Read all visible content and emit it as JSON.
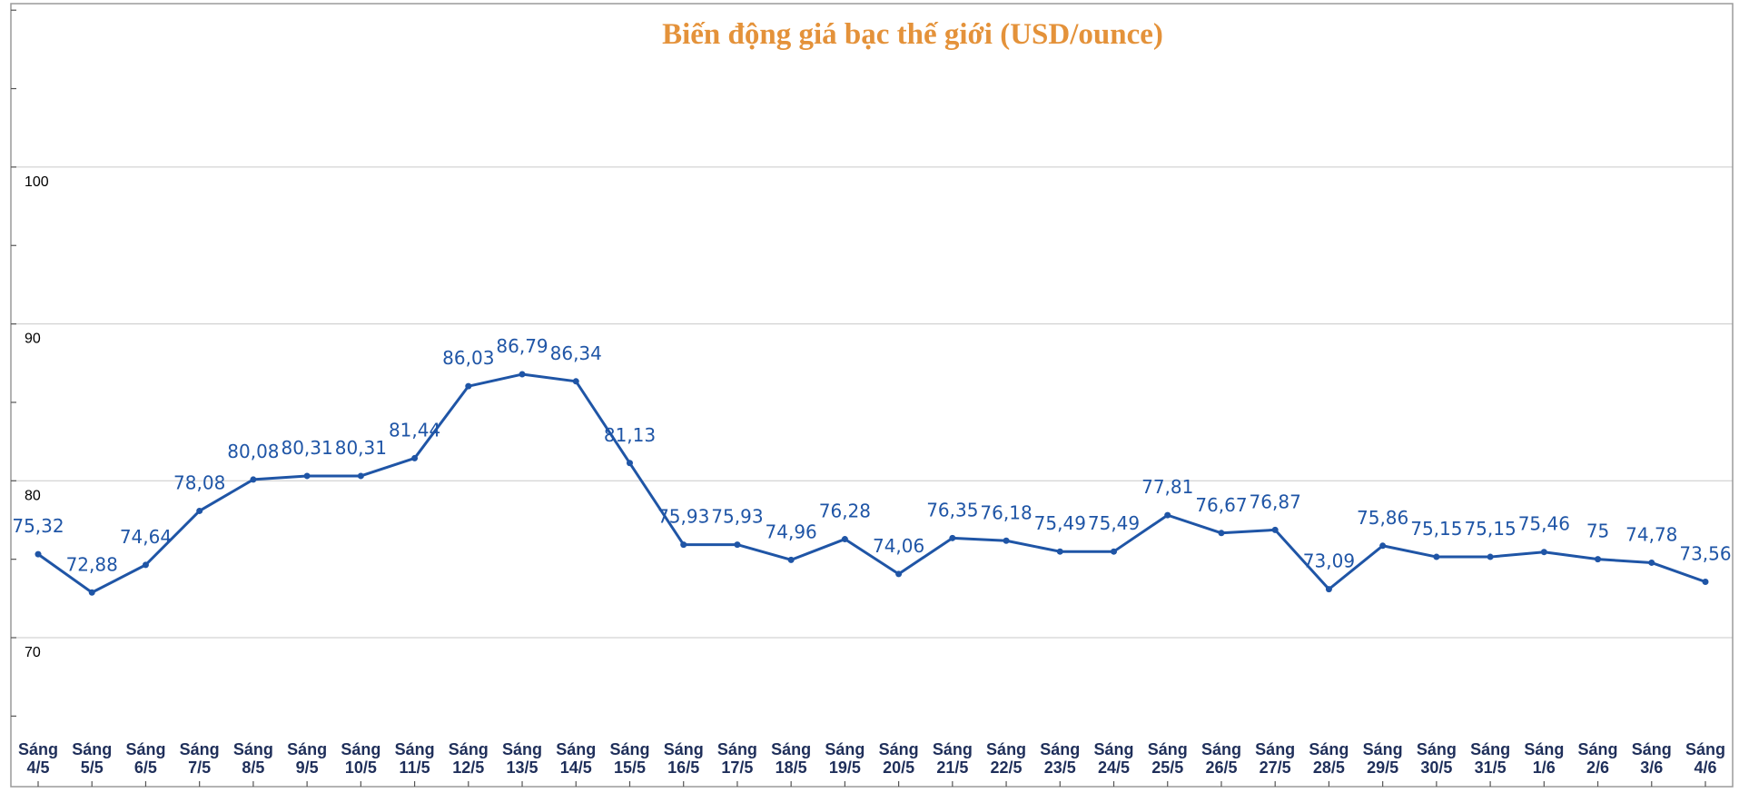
{
  "colors": {
    "title": "#e4923a",
    "series": "#1f55a6",
    "grid": "#c9c9c9",
    "axis_text": "#1f2f5a"
  },
  "chart_data": {
    "type": "line",
    "title": "Biến động giá bạc thế giới (USD/ounce)",
    "xlabel": "",
    "ylabel": "",
    "ylim": [
      60,
      110
    ],
    "yticks": [
      70,
      80,
      90,
      100
    ],
    "grid": true,
    "legend": "none",
    "categories": [
      [
        "Sáng",
        "4/5"
      ],
      [
        "Sáng",
        "5/5"
      ],
      [
        "Sáng",
        "6/5"
      ],
      [
        "Sáng",
        "7/5"
      ],
      [
        "Sáng",
        "8/5"
      ],
      [
        "Sáng",
        "9/5"
      ],
      [
        "Sáng",
        "10/5"
      ],
      [
        "Sáng",
        "11/5"
      ],
      [
        "Sáng",
        "12/5"
      ],
      [
        "Sáng",
        "13/5"
      ],
      [
        "Sáng",
        "14/5"
      ],
      [
        "Sáng",
        "15/5"
      ],
      [
        "Sáng",
        "16/5"
      ],
      [
        "Sáng",
        "17/5"
      ],
      [
        "Sáng",
        "18/5"
      ],
      [
        "Sáng",
        "19/5"
      ],
      [
        "Sáng",
        "20/5"
      ],
      [
        "Sáng",
        "21/5"
      ],
      [
        "Sáng",
        "22/5"
      ],
      [
        "Sáng",
        "23/5"
      ],
      [
        "Sáng",
        "24/5"
      ],
      [
        "Sáng",
        "25/5"
      ],
      [
        "Sáng",
        "26/5"
      ],
      [
        "Sáng",
        "27/5"
      ],
      [
        "Sáng",
        "28/5"
      ],
      [
        "Sáng",
        "29/5"
      ],
      [
        "Sáng",
        "30/5"
      ],
      [
        "Sáng",
        "31/5"
      ],
      [
        "Sáng",
        "1/6"
      ],
      [
        "Sáng",
        "2/6"
      ],
      [
        "Sáng",
        "3/6"
      ],
      [
        "Sáng",
        "4/6"
      ]
    ],
    "series": [
      {
        "values": [
          75.32,
          72.88,
          74.64,
          78.08,
          80.08,
          80.31,
          80.31,
          81.44,
          86.03,
          86.79,
          86.34,
          81.13,
          75.93,
          75.93,
          74.96,
          76.28,
          74.06,
          76.35,
          76.18,
          75.49,
          75.49,
          77.81,
          76.67,
          76.87,
          73.09,
          75.86,
          75.15,
          75.15,
          75.46,
          75,
          74.78,
          73.56
        ],
        "labels": [
          "75,32",
          "72,88",
          "74,64",
          "78,08",
          "80,08",
          "80,31",
          "80,31",
          "81,44",
          "86,03",
          "86,79",
          "86,34",
          "81,13",
          "75,93",
          "75,93",
          "74,96",
          "76,28",
          "74,06",
          "76,35",
          "76,18",
          "75,49",
          "75,49",
          "77,81",
          "76,67",
          "76,87",
          "73,09",
          "75,86",
          "75,15",
          "75,15",
          "75,46",
          "75",
          "74,78",
          "73,56"
        ]
      }
    ]
  }
}
